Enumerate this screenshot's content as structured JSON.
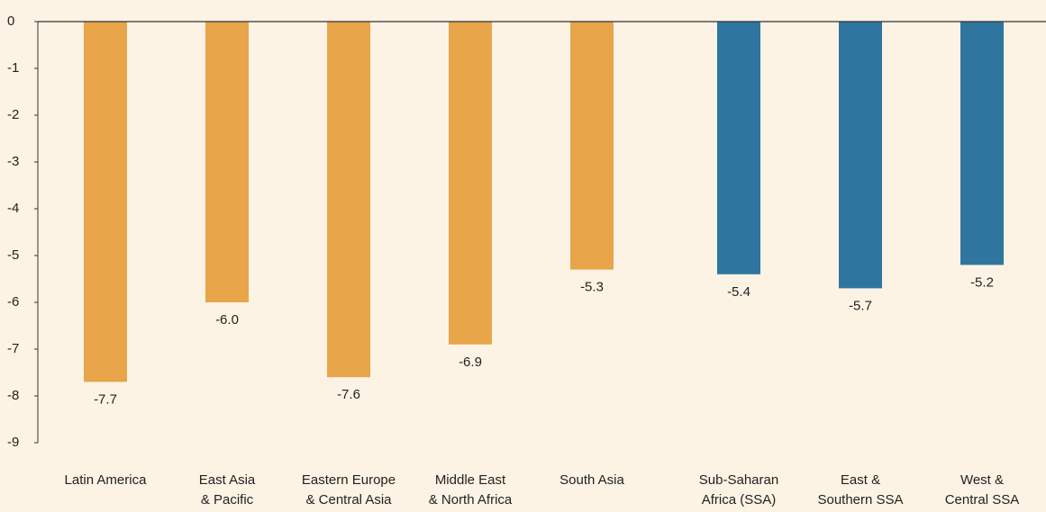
{
  "chart_data": {
    "type": "bar",
    "categories": [
      "Latin America",
      "East Asia\n& Pacific",
      "Eastern Europe\n& Central Asia",
      "Middle East\n& North Africa",
      "South Asia",
      "Sub-Saharan\nAfrica (SSA)",
      "East &\nSouthern SSA",
      "West &\nCentral SSA"
    ],
    "values": [
      -7.7,
      -6.0,
      -7.6,
      -6.9,
      -5.3,
      -5.4,
      -5.7,
      -5.2
    ],
    "value_labels": [
      "-7.7",
      "-6.0",
      "-7.6",
      "-6.9",
      "-5.3",
      "-5.4",
      "-5.7",
      "-5.2"
    ],
    "colors": [
      "#e8a54a",
      "#e8a54a",
      "#e8a54a",
      "#e8a54a",
      "#e8a54a",
      "#2e76a0",
      "#2e76a0",
      "#2e76a0"
    ],
    "ylim": [
      -9,
      0
    ],
    "yticks": [
      0,
      -1,
      -2,
      -3,
      -4,
      -5,
      -6,
      -7,
      -8,
      -9
    ],
    "grid": false
  }
}
